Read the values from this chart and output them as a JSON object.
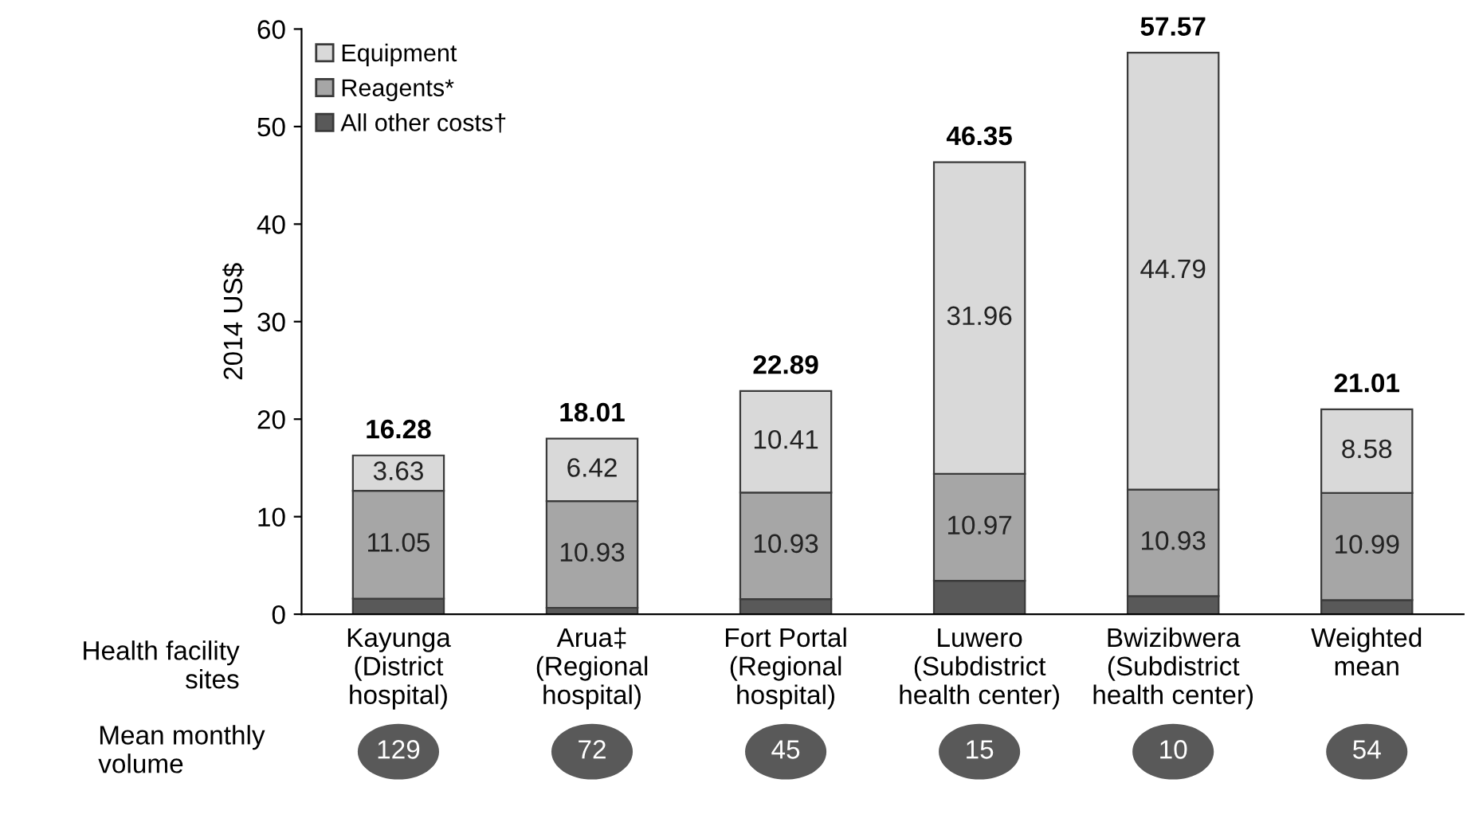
{
  "chart_data": {
    "type": "bar",
    "stacked": true,
    "ylabel": "2014 US$",
    "categories": [
      "Kayunga\n(District\nhospital)",
      "Arua‡\n(Regional\nhospital)",
      "Fort Portal\n(Regional\nhospital)",
      "Luwero\n(Subdistrict\nhealth center)",
      "Bwizibwera\n(Subdistrict\nhealth center)",
      "Weighted\nmean"
    ],
    "series": [
      {
        "name": "All other costs†",
        "color": "#595959",
        "values": [
          1.6,
          0.66,
          1.55,
          3.42,
          1.85,
          1.44
        ]
      },
      {
        "name": "Reagents*",
        "color": "#a6a6a6",
        "values": [
          11.05,
          10.93,
          10.93,
          10.97,
          10.93,
          10.99
        ],
        "value_labels": [
          "11.05",
          "10.93",
          "10.93",
          "10.97",
          "10.93",
          "10.99"
        ]
      },
      {
        "name": "Equipment",
        "color": "#d9d9d9",
        "values": [
          3.63,
          6.42,
          10.41,
          31.96,
          44.79,
          8.58
        ],
        "value_labels": [
          "3.63",
          "6.42",
          "10.41",
          "31.96",
          "44.79",
          "8.58"
        ]
      }
    ],
    "totals": [
      "16.28",
      "18.01",
      "22.89",
      "46.35",
      "57.57",
      "21.01"
    ],
    "ylim": [
      0,
      60
    ],
    "yticks": [
      0,
      10,
      20,
      30,
      40,
      50,
      60
    ],
    "grid": false,
    "legend": "top left",
    "annotations": [
      "Health facility\nsites",
      "Mean monthly\nvolume",
      "129",
      "72",
      "45",
      "15",
      "10",
      "54"
    ]
  }
}
